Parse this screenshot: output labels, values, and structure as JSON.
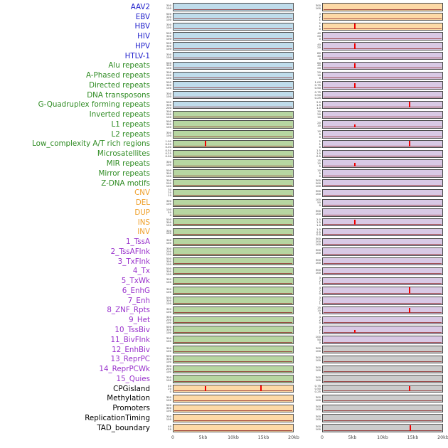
{
  "colors": {
    "label_virus": "#2222cc",
    "label_repeat": "#2e8b22",
    "label_sv": "#efa02a",
    "label_chromatin": "#9932cc",
    "label_other": "#000000",
    "panel_blue": "#bfdceb",
    "panel_green": "#b7d6a1",
    "panel_orange": "#fdd9a6",
    "panel_purple": "#d9c9e5",
    "panel_gray": "#cbcbcb",
    "spike_red": "#ee0000",
    "baseline_dark_red": "#8b2222"
  },
  "chart_data": {
    "type": "line",
    "x_axis_ticks": [
      "0",
      "5kb",
      "10kb",
      "15kb",
      "20kb"
    ],
    "x_range_kb": [
      0,
      20
    ],
    "columns": 2,
    "tracks": [
      {
        "label": "AAV2",
        "group": "virus",
        "left": {
          "bg": "blue",
          "ticks": [
            "300",
            "100"
          ],
          "spikes": []
        },
        "right": {
          "bg": "orange",
          "ticks": [
            "300",
            "100"
          ],
          "spikes": []
        }
      },
      {
        "label": "EBV",
        "group": "virus",
        "left": {
          "bg": "blue",
          "ticks": [
            "500",
            "300",
            "100"
          ],
          "spikes": []
        },
        "right": {
          "bg": "orange",
          "ticks": [
            "3",
            "2",
            "1"
          ],
          "spikes": []
        }
      },
      {
        "label": "HBV",
        "group": "virus",
        "left": {
          "bg": "blue",
          "ticks": [
            "300",
            "100"
          ],
          "spikes": []
        },
        "right": {
          "bg": "orange",
          "ticks": [
            "2",
            "1",
            "0"
          ],
          "spikes": [
            {
              "x_kb": 5.3,
              "height_frac": 0.9
            }
          ]
        }
      },
      {
        "label": "HIV",
        "group": "virus",
        "left": {
          "bg": "blue",
          "ticks": [
            "500",
            "300",
            "100"
          ],
          "spikes": []
        },
        "right": {
          "bg": "purple",
          "ticks": [
            "40",
            "20",
            "0"
          ],
          "spikes": []
        }
      },
      {
        "label": "HPV",
        "group": "virus",
        "left": {
          "bg": "blue",
          "ticks": [
            "500",
            "300",
            "100"
          ],
          "spikes": []
        },
        "right": {
          "bg": "purple",
          "ticks": [
            "40",
            "20"
          ],
          "spikes": [
            {
              "x_kb": 5.3,
              "height_frac": 0.85
            }
          ]
        }
      },
      {
        "label": "HTLV-1",
        "group": "virus",
        "left": {
          "bg": "blue",
          "ticks": [
            "300",
            "100"
          ],
          "spikes": []
        },
        "right": {
          "bg": "purple",
          "ticks": [
            "80",
            "40",
            "0"
          ],
          "spikes": []
        }
      },
      {
        "label": "Alu repeats",
        "group": "repeat",
        "left": {
          "bg": "blue",
          "ticks": [
            "500",
            "300",
            "100"
          ],
          "spikes": []
        },
        "right": {
          "bg": "purple",
          "ticks": [
            "60",
            "40",
            "20"
          ],
          "spikes": [
            {
              "x_kb": 5.3,
              "height_frac": 0.8
            }
          ]
        }
      },
      {
        "label": "A-Phased repeats",
        "group": "repeat",
        "left": {
          "bg": "blue",
          "ticks": [
            "300",
            "200",
            "100"
          ],
          "spikes": []
        },
        "right": {
          "bg": "purple",
          "ticks": [
            "20",
            "10",
            "0"
          ],
          "spikes": []
        }
      },
      {
        "label": "Directed repeats",
        "group": "repeat",
        "left": {
          "bg": "blue",
          "ticks": [
            "500",
            "300",
            "100"
          ],
          "spikes": []
        },
        "right": {
          "bg": "purple",
          "ticks": [
            "1.00",
            "0.75",
            "0.50"
          ],
          "spikes": [
            {
              "x_kb": 5.3,
              "height_frac": 0.7
            }
          ]
        }
      },
      {
        "label": "DNA transposons",
        "group": "repeat",
        "left": {
          "bg": "blue",
          "ticks": [
            "300",
            "100"
          ],
          "spikes": []
        },
        "right": {
          "bg": "purple",
          "ticks": [
            "0.75",
            "0.50",
            "0.25"
          ],
          "spikes": []
        }
      },
      {
        "label": "G-Quadruplex forming repeats",
        "group": "repeat",
        "left": {
          "bg": "blue",
          "ticks": [
            "500",
            "300",
            "200"
          ],
          "spikes": []
        },
        "right": {
          "bg": "purple",
          "ticks": [
            "2.0",
            "1.5",
            "1.0"
          ],
          "spikes": [
            {
              "x_kb": 14.5,
              "height_frac": 0.85
            }
          ]
        }
      },
      {
        "label": "Inverted repeats",
        "group": "repeat",
        "left": {
          "bg": "green",
          "ticks": [
            "300",
            "200",
            "100"
          ],
          "spikes": []
        },
        "right": {
          "bg": "purple",
          "ticks": [
            "30",
            "20",
            "10"
          ],
          "spikes": []
        }
      },
      {
        "label": "L1 repeats",
        "group": "repeat",
        "left": {
          "bg": "green",
          "ticks": [
            "500",
            "300",
            "100"
          ],
          "spikes": []
        },
        "right": {
          "bg": "purple",
          "ticks": [
            "20",
            "10"
          ],
          "spikes": [
            {
              "x_kb": 5.3,
              "height_frac": 0.35
            }
          ]
        }
      },
      {
        "label": "L2 repeats",
        "group": "repeat",
        "left": {
          "bg": "green",
          "ticks": [
            "300",
            "100"
          ],
          "spikes": []
        },
        "right": {
          "bg": "purple",
          "ticks": [
            "10",
            "5",
            "0"
          ],
          "spikes": []
        }
      },
      {
        "label": "Low_complexity A/T rich regions",
        "group": "repeat",
        "left": {
          "bg": "green",
          "ticks": [
            "1.00",
            "0.50",
            "0.00"
          ],
          "spikes": [
            {
              "x_kb": 5.4,
              "height_frac": 0.85
            }
          ]
        },
        "right": {
          "bg": "purple",
          "ticks": [
            "2",
            "1",
            "0"
          ],
          "spikes": [
            {
              "x_kb": 14.5,
              "height_frac": 0.85
            }
          ]
        }
      },
      {
        "label": "Microsatellites",
        "group": "repeat",
        "left": {
          "bg": "green",
          "ticks": [
            "0.50",
            "0.25",
            "0.00"
          ],
          "spikes": []
        },
        "right": {
          "bg": "purple",
          "ticks": [
            "1.5",
            "1.0",
            "0.5"
          ],
          "spikes": []
        }
      },
      {
        "label": "MIR repeats",
        "group": "repeat",
        "left": {
          "bg": "green",
          "ticks": [
            "300",
            "100"
          ],
          "spikes": []
        },
        "right": {
          "bg": "purple",
          "ticks": [
            "15",
            "10",
            "5"
          ],
          "spikes": [
            {
              "x_kb": 5.3,
              "height_frac": 0.55
            }
          ]
        }
      },
      {
        "label": "Mirror repeats",
        "group": "repeat",
        "left": {
          "bg": "green",
          "ticks": [
            "500",
            "300",
            "100"
          ],
          "spikes": []
        },
        "right": {
          "bg": "purple",
          "ticks": [
            "10",
            "5",
            "0"
          ],
          "spikes": []
        }
      },
      {
        "label": "Z-DNA motifs",
        "group": "repeat",
        "left": {
          "bg": "green",
          "ticks": [
            "300",
            "200",
            "100"
          ],
          "spikes": []
        },
        "right": {
          "bg": "purple",
          "ticks": [
            "300",
            "200",
            "100"
          ],
          "spikes": []
        }
      },
      {
        "label": "CNV",
        "group": "sv",
        "left": {
          "bg": "green",
          "ticks": [
            "30",
            "20",
            "10"
          ],
          "spikes": []
        },
        "right": {
          "bg": "purple",
          "ticks": [
            "300",
            "100"
          ],
          "spikes": []
        }
      },
      {
        "label": "DEL",
        "group": "sv",
        "left": {
          "bg": "green",
          "ticks": [
            "300",
            "100"
          ],
          "spikes": []
        },
        "right": {
          "bg": "purple",
          "ticks": [
            "100",
            "50",
            "0"
          ],
          "spikes": []
        }
      },
      {
        "label": "DUP",
        "group": "sv",
        "left": {
          "bg": "green",
          "ticks": [
            "100",
            "50",
            "0"
          ],
          "spikes": []
        },
        "right": {
          "bg": "purple",
          "ticks": [
            "300",
            "100"
          ],
          "spikes": []
        }
      },
      {
        "label": "INS",
        "group": "sv",
        "left": {
          "bg": "green",
          "ticks": [
            "500",
            "300",
            "100"
          ],
          "spikes": []
        },
        "right": {
          "bg": "purple",
          "ticks": [
            "2.0",
            "1.5",
            "1.0"
          ],
          "spikes": [
            {
              "x_kb": 5.3,
              "height_frac": 0.8
            }
          ]
        }
      },
      {
        "label": "INV",
        "group": "sv",
        "left": {
          "bg": "green",
          "ticks": [
            "300",
            "100"
          ],
          "spikes": []
        },
        "right": {
          "bg": "purple",
          "ticks": [
            "1.0",
            "0.5",
            "0.0"
          ],
          "spikes": []
        }
      },
      {
        "label": "1_TssA",
        "group": "chromatin",
        "left": {
          "bg": "green",
          "ticks": [
            "300",
            "100"
          ],
          "spikes": []
        },
        "right": {
          "bg": "purple",
          "ticks": [
            "300",
            "200",
            "100"
          ],
          "spikes": []
        }
      },
      {
        "label": "2_TssAFlnk",
        "group": "chromatin",
        "left": {
          "bg": "green",
          "ticks": [
            "300",
            "200",
            "100"
          ],
          "spikes": []
        },
        "right": {
          "bg": "purple",
          "ticks": [
            "300",
            "100"
          ],
          "spikes": []
        }
      },
      {
        "label": "3_TxFlnk",
        "group": "chromatin",
        "left": {
          "bg": "green",
          "ticks": [
            "500",
            "300",
            "100"
          ],
          "spikes": []
        },
        "right": {
          "bg": "purple",
          "ticks": [
            "300",
            "100"
          ],
          "spikes": []
        }
      },
      {
        "label": "4_Tx",
        "group": "chromatin",
        "left": {
          "bg": "green",
          "ticks": [
            "500",
            "300",
            "100"
          ],
          "spikes": []
        },
        "right": {
          "bg": "purple",
          "ticks": [
            "300",
            "100"
          ],
          "spikes": []
        }
      },
      {
        "label": "5_TxWk",
        "group": "chromatin",
        "left": {
          "bg": "green",
          "ticks": [
            "300",
            "100"
          ],
          "spikes": []
        },
        "right": {
          "bg": "purple",
          "ticks": [
            "3",
            "2",
            "1"
          ],
          "spikes": []
        }
      },
      {
        "label": "6_EnhG",
        "group": "chromatin",
        "left": {
          "bg": "green",
          "ticks": [
            "300",
            "100"
          ],
          "spikes": []
        },
        "right": {
          "bg": "purple",
          "ticks": [
            "4",
            "2",
            "0"
          ],
          "spikes": [
            {
              "x_kb": 14.5,
              "height_frac": 0.9
            }
          ]
        }
      },
      {
        "label": "7_Enh",
        "group": "chromatin",
        "left": {
          "bg": "green",
          "ticks": [
            "500",
            "300",
            "100"
          ],
          "spikes": []
        },
        "right": {
          "bg": "purple",
          "ticks": [
            "3",
            "2",
            "1"
          ],
          "spikes": []
        }
      },
      {
        "label": "8_ZNF_Rpts",
        "group": "chromatin",
        "left": {
          "bg": "green",
          "ticks": [
            "300",
            "100"
          ],
          "spikes": []
        },
        "right": {
          "bg": "purple",
          "ticks": [
            "15",
            "10",
            "5"
          ],
          "spikes": [
            {
              "x_kb": 14.5,
              "height_frac": 0.8
            }
          ]
        }
      },
      {
        "label": "9_Het",
        "group": "chromatin",
        "left": {
          "bg": "green",
          "ticks": [
            "300",
            "200",
            "100"
          ],
          "spikes": []
        },
        "right": {
          "bg": "purple",
          "ticks": [
            "4",
            "2",
            "0"
          ],
          "spikes": []
        }
      },
      {
        "label": "10_TssBiv",
        "group": "chromatin",
        "left": {
          "bg": "green",
          "ticks": [
            "500",
            "300",
            "100"
          ],
          "spikes": []
        },
        "right": {
          "bg": "purple",
          "ticks": [
            "3",
            "2",
            "1"
          ],
          "spikes": [
            {
              "x_kb": 5.3,
              "height_frac": 0.4
            }
          ]
        }
      },
      {
        "label": "11_BivFlnk",
        "group": "chromatin",
        "left": {
          "bg": "green",
          "ticks": [
            "300",
            "100"
          ],
          "spikes": []
        },
        "right": {
          "bg": "purple",
          "ticks": [
            "100",
            "50",
            "0"
          ],
          "spikes": []
        }
      },
      {
        "label": "12_EnhBiv",
        "group": "chromatin",
        "left": {
          "bg": "green",
          "ticks": [
            "300",
            "100"
          ],
          "spikes": []
        },
        "right": {
          "bg": "gray",
          "ticks": [
            "300",
            "100"
          ],
          "spikes": []
        }
      },
      {
        "label": "13_ReprPC",
        "group": "chromatin",
        "left": {
          "bg": "green",
          "ticks": [
            "500",
            "300",
            "100"
          ],
          "spikes": []
        },
        "right": {
          "bg": "gray",
          "ticks": [
            "300",
            "100"
          ],
          "spikes": []
        }
      },
      {
        "label": "14_ReprPCWk",
        "group": "chromatin",
        "left": {
          "bg": "green",
          "ticks": [
            "300",
            "200",
            "100"
          ],
          "spikes": []
        },
        "right": {
          "bg": "gray",
          "ticks": [
            "300",
            "100"
          ],
          "spikes": []
        }
      },
      {
        "label": "15_Quies",
        "group": "chromatin",
        "left": {
          "bg": "green",
          "ticks": [
            "300",
            "100"
          ],
          "spikes": []
        },
        "right": {
          "bg": "gray",
          "ticks": [
            "300",
            "100"
          ],
          "spikes": []
        }
      },
      {
        "label": "CPGisland",
        "group": "other",
        "left": {
          "bg": "orange",
          "ticks": [
            "40",
            "20",
            "0"
          ],
          "spikes": [
            {
              "x_kb": 5.3,
              "height_frac": 0.75
            },
            {
              "x_kb": 14.7,
              "height_frac": 0.85
            }
          ]
        },
        "right": {
          "bg": "gray",
          "ticks": [
            "0.75",
            "0.50",
            "0.25"
          ],
          "spikes": [
            {
              "x_kb": 14.5,
              "height_frac": 0.8
            }
          ]
        }
      },
      {
        "label": "Methylation",
        "group": "other",
        "left": {
          "bg": "orange",
          "ticks": [
            "300",
            "100"
          ],
          "spikes": []
        },
        "right": {
          "bg": "gray",
          "ticks": [
            "300",
            "100"
          ],
          "spikes": []
        }
      },
      {
        "label": "Promoters",
        "group": "other",
        "left": {
          "bg": "orange",
          "ticks": [
            "500",
            "300",
            "100"
          ],
          "spikes": []
        },
        "right": {
          "bg": "gray",
          "ticks": [
            "300",
            "100"
          ],
          "spikes": []
        }
      },
      {
        "label": "ReplicationTiming",
        "group": "other",
        "left": {
          "bg": "orange",
          "ticks": [
            "300",
            "100"
          ],
          "spikes": []
        },
        "right": {
          "bg": "gray",
          "ticks": [
            "300",
            "100"
          ],
          "spikes": []
        }
      },
      {
        "label": "TAD_boundary",
        "group": "other",
        "left": {
          "bg": "orange",
          "ticks": [
            "40",
            "20"
          ],
          "spikes": []
        },
        "right": {
          "bg": "gray",
          "ticks": [
            "300",
            "100"
          ],
          "spikes": [
            {
              "x_kb": 14.6,
              "height_frac": 0.85
            }
          ]
        }
      }
    ]
  }
}
